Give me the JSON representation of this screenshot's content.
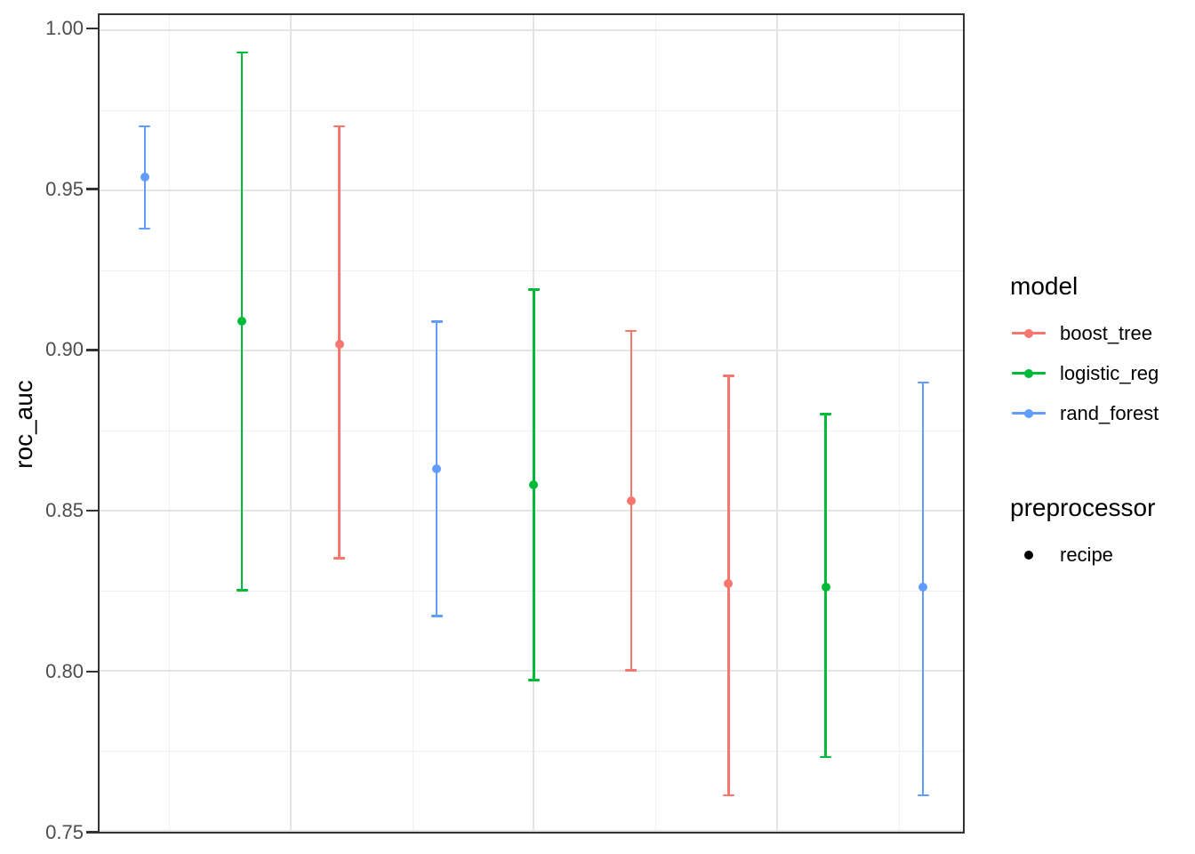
{
  "page": {
    "background": "#ffffff",
    "text_color": "#000000",
    "axis_text_color": "#4d4d4d",
    "panel_border_color": "#333333",
    "grid_major_color": "#e4e4e4",
    "grid_minor_color": "#f1f1f1"
  },
  "chart_data": {
    "type": "errorbar",
    "title": "",
    "xlabel": "",
    "ylabel": "roc_auc",
    "grid": true,
    "legend_position": "right",
    "ylim": [
      0.7496,
      1.0047
    ],
    "xlim": [
      0.536,
      9.41
    ],
    "y_ticks": [
      {
        "value": 1.0,
        "label": "1.00"
      },
      {
        "value": 0.95,
        "label": "0.95"
      },
      {
        "value": 0.9,
        "label": "0.90"
      },
      {
        "value": 0.85,
        "label": "0.85"
      },
      {
        "value": 0.8,
        "label": "0.80"
      },
      {
        "value": 0.75,
        "label": "0.75"
      }
    ],
    "y_major_gridlines": [
      0.75,
      0.8,
      0.85,
      0.9,
      0.95,
      1.0
    ],
    "y_minor_gridlines": [
      0.775,
      0.825,
      0.875,
      0.925,
      0.975
    ],
    "x_ticks": [],
    "x_major_gridlines": [
      2.5,
      5.0,
      7.5
    ],
    "x_minor_gridlines": [
      1.25,
      3.75,
      6.25,
      8.75
    ],
    "series": [
      {
        "name": "boost_tree",
        "color": "#F8766D",
        "points": [
          {
            "x": 3,
            "mean": 0.902,
            "lo": 0.835,
            "hi": 0.97
          },
          {
            "x": 6,
            "mean": 0.853,
            "lo": 0.8,
            "hi": 0.906
          },
          {
            "x": 7,
            "mean": 0.827,
            "lo": 0.761,
            "hi": 0.892
          }
        ]
      },
      {
        "name": "logistic_reg",
        "color": "#00BA38",
        "points": [
          {
            "x": 2,
            "mean": 0.909,
            "lo": 0.825,
            "hi": 0.993
          },
          {
            "x": 5,
            "mean": 0.858,
            "lo": 0.797,
            "hi": 0.919
          },
          {
            "x": 8,
            "mean": 0.826,
            "lo": 0.773,
            "hi": 0.88
          }
        ]
      },
      {
        "name": "rand_forest",
        "color": "#619CFF",
        "points": [
          {
            "x": 1,
            "mean": 0.954,
            "lo": 0.938,
            "hi": 0.97
          },
          {
            "x": 4,
            "mean": 0.863,
            "lo": 0.817,
            "hi": 0.909
          },
          {
            "x": 9,
            "mean": 0.826,
            "lo": 0.761,
            "hi": 0.89
          }
        ]
      }
    ]
  },
  "legend": {
    "groups": [
      {
        "title": "model",
        "items": [
          {
            "label": "boost_tree",
            "color": "#F8766D",
            "key": "line-dot"
          },
          {
            "label": "logistic_reg",
            "color": "#00BA38",
            "key": "line-dot"
          },
          {
            "label": "rand_forest",
            "color": "#619CFF",
            "key": "line-dot"
          }
        ]
      },
      {
        "title": "preprocessor",
        "items": [
          {
            "label": "recipe",
            "color": "#000000",
            "key": "dot"
          }
        ]
      }
    ]
  }
}
